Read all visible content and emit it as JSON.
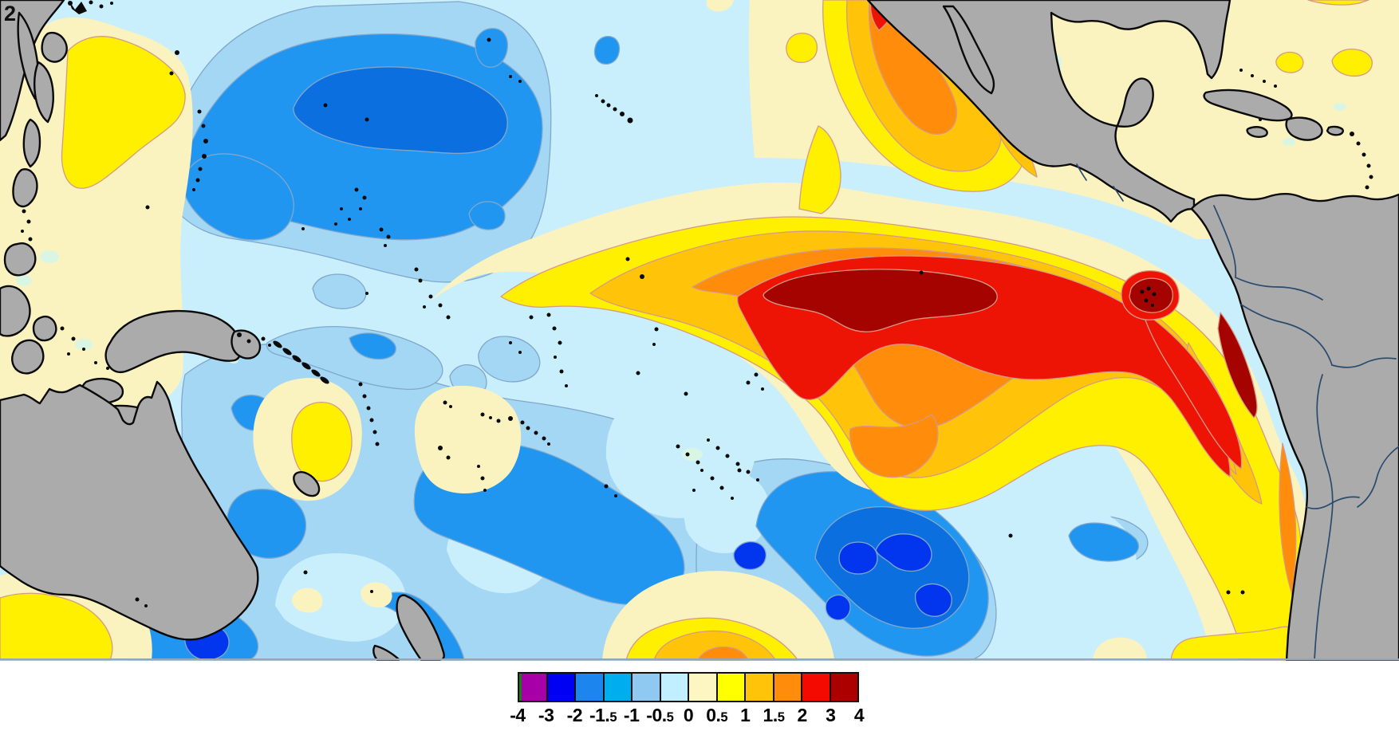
{
  "map_overlay": {
    "corner_artifact": "2"
  },
  "colorbar": {
    "tick_labels": [
      "-4",
      "-3",
      "-2",
      "-1.5",
      "-1",
      "-0.5",
      "0",
      "0.5",
      "1",
      "1.5",
      "2",
      "3",
      "4"
    ],
    "cell_colors": [
      "#A800A8",
      "#0000F2",
      "#1C86EE",
      "#00AEEF",
      "#8FC9F2",
      "#C2EFFF",
      "#FDF6C3",
      "#FFFF00",
      "#FFC30A",
      "#FF8C0A",
      "#F50A00",
      "#AB0000"
    ]
  },
  "palette": {
    "palecyan": "#C9EFFC",
    "lightblue": "#A4D7F4",
    "coldmid": "#2196F0",
    "colddeep": "#0C6FE0",
    "coldcore": "#0236EE",
    "seafoam": "#D9F6E4",
    "cream": "#FBF3BF",
    "yellow": "#FFF000",
    "amber": "#FFC30A",
    "orange": "#FF8C0A",
    "red": "#EE1405",
    "darkred": "#A50300",
    "land": "#ABABAB",
    "coast": "#0A0A0A",
    "border": "#2A4A6E",
    "coldedge": "#7FA8CC",
    "warmedge": "#D49A88",
    "speck": "#0A0A0A",
    "frame": "#97A6B2",
    "background": "#FFFFFF"
  }
}
